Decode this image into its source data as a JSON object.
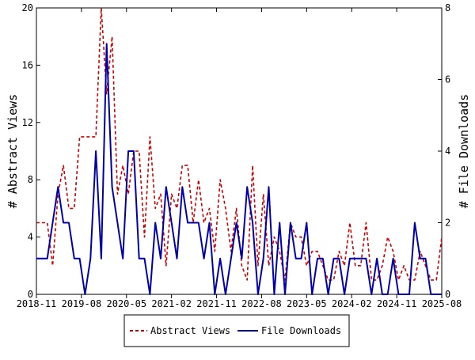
{
  "chart_data": {
    "type": "line",
    "x_tick_labels": [
      "2018-11",
      "2019-08",
      "2020-05",
      "2021-02",
      "2021-11",
      "2022-08",
      "2023-05",
      "2024-02",
      "2024-11",
      "2025-08"
    ],
    "y_left": {
      "label": "# Abstract Views",
      "ticks": [
        0,
        4,
        8,
        12,
        16,
        20
      ],
      "range": [
        0,
        20
      ]
    },
    "y_right": {
      "label": "# File Downloads",
      "ticks": [
        0,
        2,
        4,
        6,
        8
      ],
      "range": [
        0,
        8
      ]
    },
    "grid": false,
    "legend_position": "bottom",
    "series": [
      {
        "name": "Abstract Views",
        "axis": "left",
        "color": "#cc0000",
        "style": "dashed",
        "values": [
          5,
          5,
          5,
          2,
          7,
          9,
          6,
          6,
          11,
          11,
          11,
          11,
          20,
          14,
          18,
          7,
          9,
          7,
          10,
          10,
          4,
          11,
          6,
          7,
          2,
          7,
          6,
          9,
          9,
          5,
          8,
          5,
          6,
          3,
          8,
          6,
          3,
          6,
          2,
          1,
          9,
          2,
          7,
          2,
          4,
          3,
          1,
          5,
          4,
          4,
          2,
          3,
          3,
          2,
          1,
          1,
          3,
          2,
          5,
          2,
          2,
          5,
          1,
          1,
          2,
          4,
          3,
          1,
          2,
          1,
          1,
          3,
          2,
          1,
          1,
          4
        ]
      },
      {
        "name": "File Downloads",
        "axis": "right",
        "color": "#0000aa",
        "style": "solid",
        "values": [
          1,
          1,
          1,
          2,
          3,
          2,
          2,
          1,
          1,
          0,
          1,
          4,
          1,
          7,
          3,
          2,
          1,
          4,
          4,
          1,
          1,
          0,
          2,
          1,
          3,
          2,
          1,
          3,
          2,
          2,
          2,
          1,
          2,
          0,
          1,
          0,
          1,
          2,
          1,
          3,
          2,
          0,
          1,
          3,
          0,
          2,
          0,
          2,
          1,
          1,
          2,
          0,
          1,
          1,
          0,
          1,
          1,
          0,
          1,
          1,
          1,
          1,
          0,
          1,
          0,
          0,
          1,
          0,
          0,
          0,
          2,
          1,
          1,
          0,
          0,
          0
        ]
      }
    ]
  }
}
